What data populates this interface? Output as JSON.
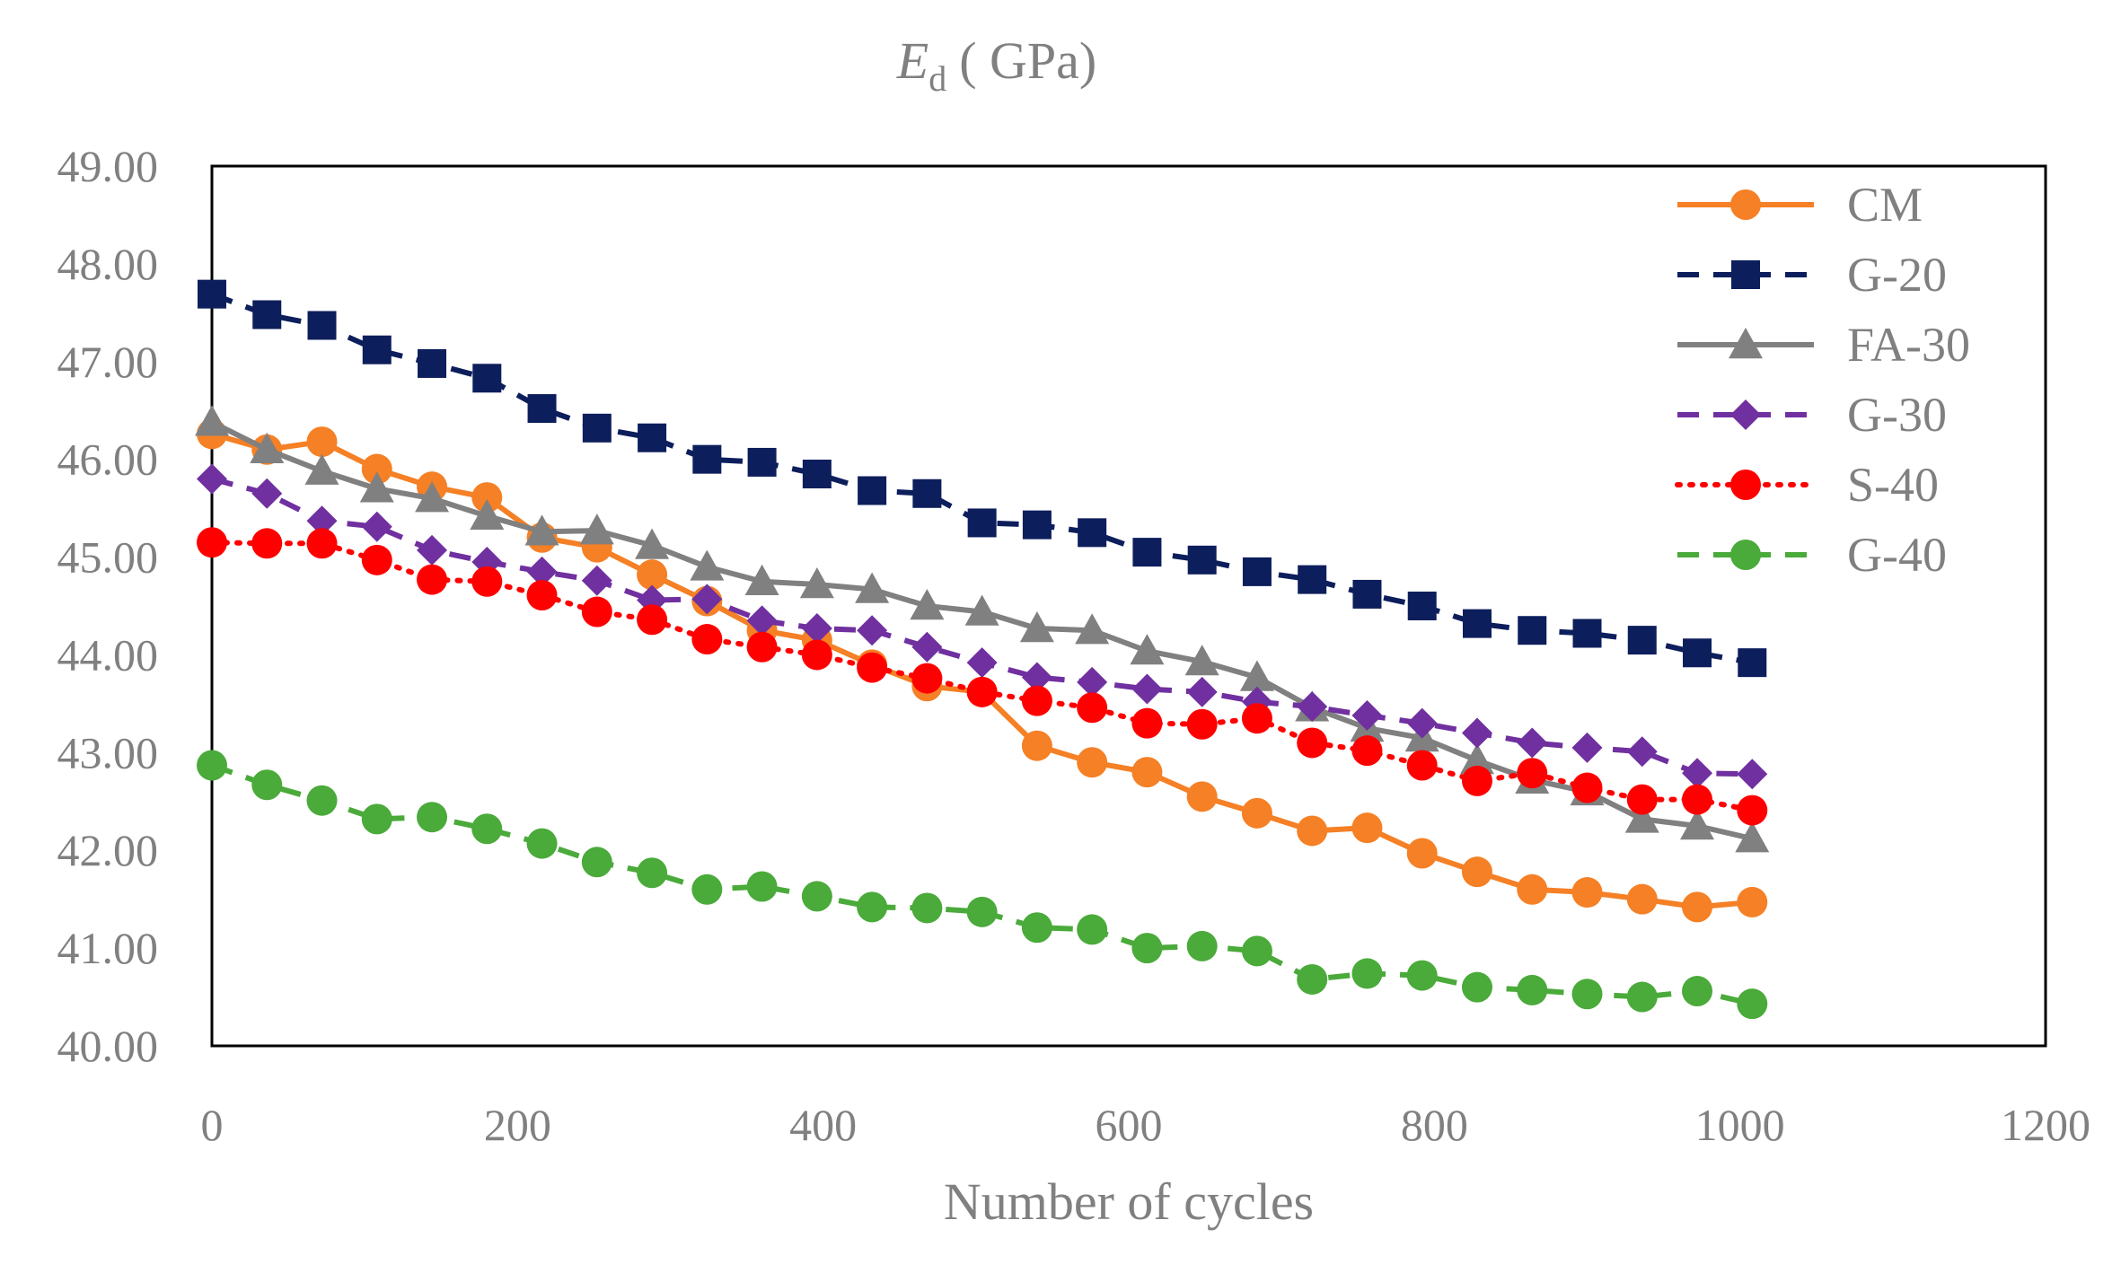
{
  "chart_data": {
    "type": "line",
    "title": "E",
    "title_subscript": "d",
    "title_unit": "( GPa)",
    "xlabel": "Number of cycles",
    "ylabel": "",
    "xlim": [
      0,
      1200
    ],
    "ylim": [
      40,
      49
    ],
    "xticks": [
      0,
      200,
      400,
      600,
      800,
      1000,
      1200
    ],
    "xtick_labels": [
      "0",
      "200",
      "400",
      "600",
      "800",
      "1000",
      "1200"
    ],
    "yticks": [
      40,
      41,
      42,
      43,
      44,
      45,
      46,
      47,
      48,
      49
    ],
    "ytick_labels": [
      "40.00",
      "41.00",
      "42.00",
      "43.00",
      "44.00",
      "45.00",
      "46.00",
      "47.00",
      "48.00",
      "49.00"
    ],
    "grid": false,
    "legend_position": "top-right",
    "x": [
      0,
      36,
      72,
      108,
      144,
      180,
      216,
      252,
      288,
      324,
      360,
      396,
      432,
      468,
      504,
      540,
      576,
      612,
      648,
      684,
      720,
      756,
      792,
      828,
      864,
      900,
      936,
      972,
      1008
    ],
    "series": [
      {
        "name": "CM",
        "color": "#F58025",
        "marker": "circle",
        "dash": "solid",
        "values": [
          46.26,
          46.1,
          46.18,
          45.9,
          45.72,
          45.61,
          45.2,
          45.1,
          44.82,
          44.55,
          44.25,
          44.15,
          43.9,
          43.68,
          43.62,
          43.07,
          42.9,
          42.8,
          42.55,
          42.38,
          42.2,
          42.23,
          41.97,
          41.78,
          41.6,
          41.57,
          41.5,
          41.42,
          41.47
        ]
      },
      {
        "name": "G-20",
        "color": "#0D1E5C",
        "marker": "square",
        "dash": "dash",
        "values": [
          47.69,
          47.48,
          47.37,
          47.12,
          46.98,
          46.83,
          46.52,
          46.32,
          46.22,
          46.0,
          45.97,
          45.85,
          45.68,
          45.65,
          45.35,
          45.33,
          45.25,
          45.05,
          44.97,
          44.85,
          44.77,
          44.62,
          44.5,
          44.32,
          44.25,
          44.22,
          44.15,
          44.02,
          43.92
        ]
      },
      {
        "name": "FA-30",
        "color": "#808080",
        "marker": "triangle",
        "dash": "solid",
        "values": [
          46.38,
          46.1,
          45.88,
          45.7,
          45.6,
          45.42,
          45.26,
          45.27,
          45.12,
          44.9,
          44.75,
          44.72,
          44.67,
          44.5,
          44.44,
          44.27,
          44.25,
          44.04,
          43.93,
          43.77,
          43.46,
          43.25,
          43.15,
          42.92,
          42.72,
          42.6,
          42.32,
          42.25,
          42.12
        ]
      },
      {
        "name": "G-30",
        "color": "#7030A0",
        "marker": "diamond",
        "dash": "dash",
        "values": [
          45.8,
          45.65,
          45.37,
          45.31,
          45.07,
          44.95,
          44.85,
          44.76,
          44.56,
          44.57,
          44.35,
          44.27,
          44.25,
          44.08,
          43.92,
          43.77,
          43.72,
          43.65,
          43.62,
          43.52,
          43.47,
          43.38,
          43.3,
          43.2,
          43.1,
          43.05,
          43.01,
          42.79,
          42.78
        ]
      },
      {
        "name": "S-40",
        "color": "#FF0000",
        "marker": "circle",
        "dash": "dot",
        "values": [
          45.15,
          45.14,
          45.14,
          44.97,
          44.77,
          44.75,
          44.61,
          44.44,
          44.36,
          44.16,
          44.08,
          44.0,
          43.87,
          43.76,
          43.62,
          43.53,
          43.46,
          43.3,
          43.29,
          43.35,
          43.1,
          43.02,
          42.87,
          42.71,
          42.79,
          42.64,
          42.52,
          42.52,
          42.41
        ]
      },
      {
        "name": "G-40",
        "color": "#4AAA3A",
        "marker": "circle",
        "dash": "dash",
        "values": [
          42.87,
          42.67,
          42.51,
          42.32,
          42.34,
          42.22,
          42.07,
          41.88,
          41.77,
          41.6,
          41.63,
          41.53,
          41.42,
          41.41,
          41.37,
          41.21,
          41.19,
          41.0,
          41.02,
          40.97,
          40.68,
          40.74,
          40.72,
          40.6,
          40.57,
          40.53,
          40.5,
          40.56,
          40.43
        ]
      }
    ]
  }
}
